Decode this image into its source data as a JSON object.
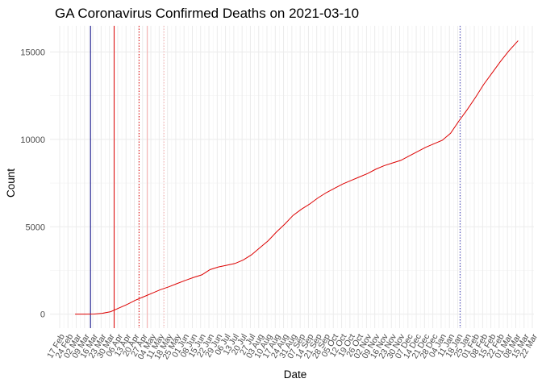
{
  "chart_data": {
    "type": "line",
    "title": "GA Coronavirus Confirmed Deaths on 2021-03-10",
    "xlabel": "Date",
    "ylabel": "Count",
    "x_axis_type": "date",
    "xlim": [
      "2020-02-17",
      "2021-03-22"
    ],
    "ylim": [
      -800,
      16500
    ],
    "y_ticks": [
      0,
      5000,
      10000,
      15000
    ],
    "grid": true,
    "x_tick_labels": [
      "17 Feb",
      "24 Feb",
      "02 Mar",
      "09 Mar",
      "16 Mar",
      "23 Mar",
      "30 Mar",
      "06 Apr",
      "13 Apr",
      "20 Apr",
      "27 Apr",
      "04 May",
      "11 May",
      "18 May",
      "25 May",
      "01 Jun",
      "08 Jun",
      "15 Jun",
      "22 Jun",
      "29 Jun",
      "06 Jul",
      "13 Jul",
      "20 Jul",
      "27 Jul",
      "03 Aug",
      "10 Aug",
      "17 Aug",
      "24 Aug",
      "31 Aug",
      "07 Sep",
      "14 Sep",
      "21 Sep",
      "28 Sep",
      "05 Oct",
      "12 Oct",
      "19 Oct",
      "26 Oct",
      "02 Nov",
      "09 Nov",
      "16 Nov",
      "23 Nov",
      "30 Nov",
      "07 Dec",
      "14 Dec",
      "21 Dec",
      "28 Dec",
      "04 Jan",
      "11 Jan",
      "18 Jan",
      "25 Jan",
      "01 Feb",
      "08 Feb",
      "15 Feb",
      "22 Feb",
      "01 Mar",
      "08 Mar",
      "15 Mar",
      "22 Mar"
    ],
    "series": [
      {
        "color": "#dd0000",
        "points": [
          [
            "2020-03-01",
            0
          ],
          [
            "2020-03-10",
            0
          ],
          [
            "2020-03-17",
            10
          ],
          [
            "2020-03-24",
            50
          ],
          [
            "2020-03-31",
            140
          ],
          [
            "2020-04-07",
            350
          ],
          [
            "2020-04-14",
            560
          ],
          [
            "2020-04-21",
            800
          ],
          [
            "2020-04-28",
            1000
          ],
          [
            "2020-05-05",
            1200
          ],
          [
            "2020-05-12",
            1400
          ],
          [
            "2020-05-19",
            1560
          ],
          [
            "2020-05-26",
            1750
          ],
          [
            "2020-06-02",
            1930
          ],
          [
            "2020-06-09",
            2100
          ],
          [
            "2020-06-16",
            2250
          ],
          [
            "2020-06-23",
            2550
          ],
          [
            "2020-06-30",
            2700
          ],
          [
            "2020-07-07",
            2800
          ],
          [
            "2020-07-14",
            2900
          ],
          [
            "2020-07-21",
            3100
          ],
          [
            "2020-07-28",
            3400
          ],
          [
            "2020-08-04",
            3800
          ],
          [
            "2020-08-11",
            4200
          ],
          [
            "2020-08-18",
            4700
          ],
          [
            "2020-08-25",
            5150
          ],
          [
            "2020-09-01",
            5650
          ],
          [
            "2020-09-08",
            6000
          ],
          [
            "2020-09-15",
            6300
          ],
          [
            "2020-09-22",
            6650
          ],
          [
            "2020-09-29",
            6950
          ],
          [
            "2020-10-06",
            7200
          ],
          [
            "2020-10-13",
            7450
          ],
          [
            "2020-10-20",
            7650
          ],
          [
            "2020-10-27",
            7850
          ],
          [
            "2020-11-03",
            8050
          ],
          [
            "2020-11-10",
            8300
          ],
          [
            "2020-11-17",
            8500
          ],
          [
            "2020-11-24",
            8650
          ],
          [
            "2020-12-01",
            8800
          ],
          [
            "2020-12-08",
            9050
          ],
          [
            "2020-12-15",
            9300
          ],
          [
            "2020-12-22",
            9550
          ],
          [
            "2020-12-29",
            9750
          ],
          [
            "2021-01-05",
            9950
          ],
          [
            "2021-01-12",
            10350
          ],
          [
            "2021-01-19",
            11050
          ],
          [
            "2021-01-26",
            11700
          ],
          [
            "2021-02-02",
            12400
          ],
          [
            "2021-02-09",
            13150
          ],
          [
            "2021-02-16",
            13800
          ],
          [
            "2021-02-23",
            14450
          ],
          [
            "2021-03-02",
            15050
          ],
          [
            "2021-03-10",
            15650
          ]
        ]
      }
    ],
    "vertical_lines": [
      {
        "date": "2020-03-14",
        "color": "#000080",
        "style": "solid"
      },
      {
        "date": "2020-04-03",
        "color": "#dd0000",
        "style": "solid"
      },
      {
        "date": "2020-04-24",
        "color": "#dd0000",
        "style": "dotted"
      },
      {
        "date": "2020-05-01",
        "color": "#f4a8a8",
        "style": "solid"
      },
      {
        "date": "2020-05-15",
        "color": "#f4a8a8",
        "style": "dotted"
      },
      {
        "date": "2021-01-20",
        "color": "#3333aa",
        "style": "dotted"
      }
    ]
  }
}
